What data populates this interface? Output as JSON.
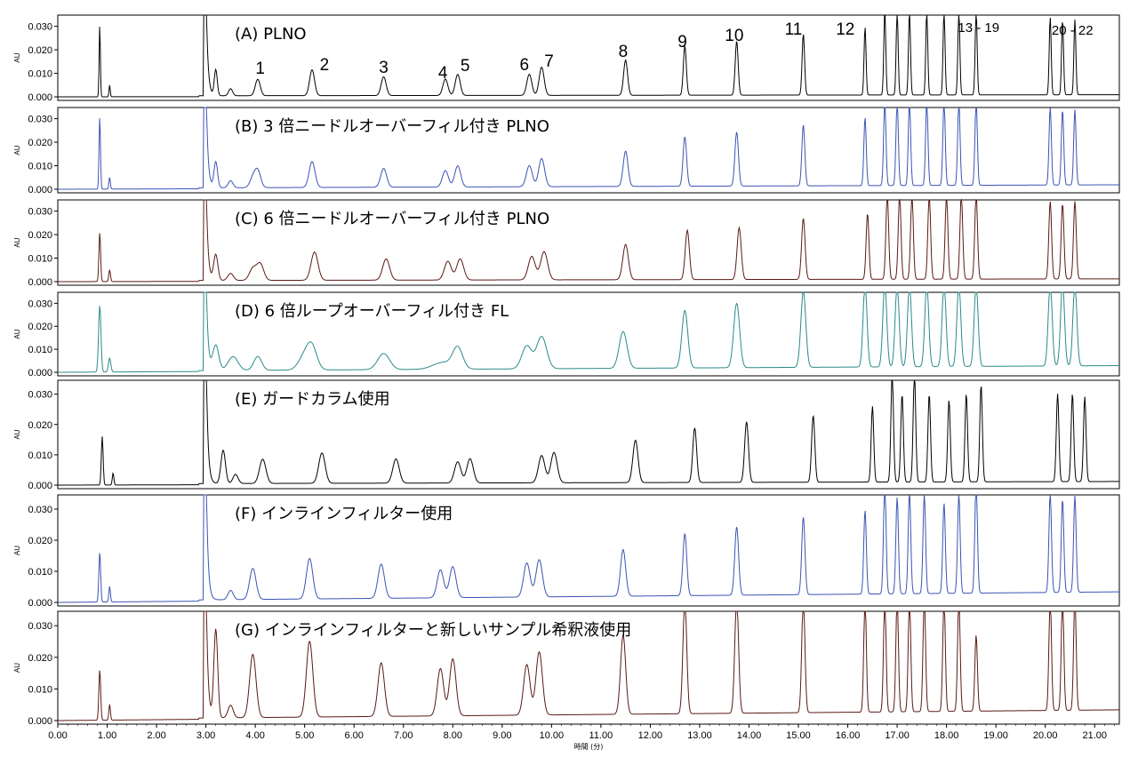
{
  "chart_data": {
    "type": "line",
    "x_axis": {
      "label": "時間 (分)",
      "range": [
        0.0,
        21.5
      ],
      "ticks": [
        "0.00",
        "1.00",
        "2.00",
        "3.00",
        "4.00",
        "5.00",
        "6.00",
        "7.00",
        "8.00",
        "9.00",
        "10.00",
        "11.00",
        "12.00",
        "13.00",
        "14.00",
        "15.00",
        "16.00",
        "17.00",
        "18.00",
        "19.00",
        "20.00",
        "21.00"
      ]
    },
    "y_axis": {
      "label": "AU",
      "range": [
        0.0,
        0.034
      ],
      "ticks": [
        "0.000",
        "0.010",
        "0.020",
        "0.030"
      ]
    },
    "grid": false,
    "panels": [
      {
        "title": "(A) PLNO",
        "color": "#000000",
        "shift": 0.0,
        "stretch": 1.0,
        "drift": 0.0005,
        "width_factor": 1.0,
        "peaks": [
          [
            0.85,
            0.031,
            0.012
          ],
          [
            1.05,
            0.005,
            0.012
          ],
          [
            3.2,
            0.011,
            0.03
          ],
          [
            3.5,
            0.003,
            0.04
          ],
          [
            4.05,
            0.007,
            0.05
          ],
          [
            5.15,
            0.011,
            0.05
          ],
          [
            6.6,
            0.008,
            0.05
          ],
          [
            7.85,
            0.007,
            0.05
          ],
          [
            8.1,
            0.009,
            0.05
          ],
          [
            9.55,
            0.009,
            0.05
          ],
          [
            9.8,
            0.012,
            0.05
          ],
          [
            11.5,
            0.015,
            0.04
          ],
          [
            12.7,
            0.021,
            0.03
          ],
          [
            13.75,
            0.023,
            0.03
          ],
          [
            15.1,
            0.026,
            0.025
          ],
          [
            16.35,
            0.029,
            0.02
          ],
          [
            16.75,
            0.036,
            0.02
          ],
          [
            17.0,
            0.036,
            0.02
          ],
          [
            17.25,
            0.036,
            0.02
          ],
          [
            17.6,
            0.036,
            0.02
          ],
          [
            17.95,
            0.036,
            0.02
          ],
          [
            18.25,
            0.036,
            0.02
          ],
          [
            18.6,
            0.036,
            0.02
          ],
          [
            20.1,
            0.033,
            0.02
          ],
          [
            20.35,
            0.032,
            0.02
          ],
          [
            20.6,
            0.032,
            0.02
          ]
        ],
        "peak_labels": [
          "1",
          "2",
          "3",
          "4",
          "5",
          "6",
          "7",
          "8",
          "9",
          "10",
          "11",
          "12",
          "13 - 19",
          "20 - 22"
        ]
      },
      {
        "title": "(B) 3 倍ニードルオーバーフィル付き PLNO",
        "color": "#3a54b4",
        "shift": 0.0,
        "stretch": 1.0,
        "drift": 0.0015,
        "width_factor": 1.2,
        "peaks": [
          [
            0.85,
            0.031,
            0.012
          ],
          [
            1.05,
            0.005,
            0.012
          ],
          [
            3.2,
            0.011,
            0.03
          ],
          [
            3.5,
            0.003,
            0.04
          ],
          [
            3.95,
            0.004,
            0.05
          ],
          [
            4.05,
            0.007,
            0.05
          ],
          [
            5.15,
            0.011,
            0.05
          ],
          [
            6.6,
            0.008,
            0.05
          ],
          [
            7.85,
            0.007,
            0.05
          ],
          [
            8.1,
            0.009,
            0.05
          ],
          [
            9.55,
            0.009,
            0.05
          ],
          [
            9.8,
            0.012,
            0.05
          ],
          [
            11.5,
            0.015,
            0.04
          ],
          [
            12.7,
            0.021,
            0.03
          ],
          [
            13.75,
            0.023,
            0.03
          ],
          [
            15.1,
            0.026,
            0.025
          ],
          [
            16.35,
            0.029,
            0.02
          ],
          [
            16.75,
            0.036,
            0.02
          ],
          [
            17.0,
            0.036,
            0.02
          ],
          [
            17.25,
            0.036,
            0.02
          ],
          [
            17.6,
            0.036,
            0.02
          ],
          [
            17.95,
            0.036,
            0.02
          ],
          [
            18.25,
            0.036,
            0.02
          ],
          [
            18.6,
            0.036,
            0.02
          ],
          [
            20.1,
            0.033,
            0.02
          ],
          [
            20.35,
            0.032,
            0.02
          ],
          [
            20.6,
            0.032,
            0.02
          ]
        ]
      },
      {
        "title": "(C) 6 倍ニードルオーバーフィル付き PLNO",
        "color": "#5a1a14",
        "shift": 0.0,
        "stretch": 1.0,
        "drift": 0.0008,
        "width_factor": 1.4,
        "peaks": [
          [
            0.85,
            0.021,
            0.012
          ],
          [
            1.05,
            0.005,
            0.012
          ],
          [
            3.2,
            0.011,
            0.03
          ],
          [
            3.5,
            0.003,
            0.04
          ],
          [
            3.95,
            0.005,
            0.05
          ],
          [
            4.1,
            0.007,
            0.05
          ],
          [
            5.2,
            0.012,
            0.05
          ],
          [
            6.65,
            0.009,
            0.05
          ],
          [
            7.9,
            0.008,
            0.05
          ],
          [
            8.15,
            0.009,
            0.05
          ],
          [
            9.6,
            0.01,
            0.05
          ],
          [
            9.85,
            0.012,
            0.05
          ],
          [
            11.5,
            0.015,
            0.04
          ],
          [
            12.75,
            0.021,
            0.03
          ],
          [
            13.8,
            0.022,
            0.03
          ],
          [
            15.1,
            0.026,
            0.025
          ],
          [
            16.4,
            0.028,
            0.02
          ],
          [
            16.8,
            0.036,
            0.02
          ],
          [
            17.05,
            0.036,
            0.02
          ],
          [
            17.3,
            0.036,
            0.02
          ],
          [
            17.65,
            0.036,
            0.02
          ],
          [
            18.0,
            0.036,
            0.02
          ],
          [
            18.3,
            0.036,
            0.02
          ],
          [
            18.6,
            0.036,
            0.02
          ],
          [
            20.1,
            0.033,
            0.02
          ],
          [
            20.35,
            0.032,
            0.02
          ],
          [
            20.6,
            0.033,
            0.02
          ]
        ]
      },
      {
        "title": "(D) 6 倍ループオーバーフィル付き FL",
        "color": "#2a8a8a",
        "shift": 0.0,
        "stretch": 1.0,
        "drift": 0.0025,
        "width_factor": 2.0,
        "peaks": [
          [
            0.85,
            0.029,
            0.012
          ],
          [
            1.05,
            0.006,
            0.012
          ],
          [
            3.2,
            0.011,
            0.03
          ],
          [
            3.55,
            0.006,
            0.05
          ],
          [
            4.05,
            0.006,
            0.04
          ],
          [
            5.0,
            0.006,
            0.06
          ],
          [
            5.15,
            0.009,
            0.05
          ],
          [
            6.6,
            0.007,
            0.06
          ],
          [
            7.8,
            0.003,
            0.1
          ],
          [
            8.1,
            0.009,
            0.05
          ],
          [
            9.5,
            0.01,
            0.05
          ],
          [
            9.8,
            0.014,
            0.05
          ],
          [
            11.45,
            0.016,
            0.04
          ],
          [
            12.7,
            0.025,
            0.03
          ],
          [
            13.75,
            0.028,
            0.03
          ],
          [
            15.1,
            0.033,
            0.025
          ],
          [
            16.35,
            0.036,
            0.02
          ],
          [
            16.75,
            0.036,
            0.02
          ],
          [
            17.0,
            0.036,
            0.02
          ],
          [
            17.25,
            0.036,
            0.02
          ],
          [
            17.6,
            0.036,
            0.02
          ],
          [
            17.95,
            0.036,
            0.02
          ],
          [
            18.25,
            0.036,
            0.02
          ],
          [
            18.6,
            0.036,
            0.02
          ],
          [
            20.1,
            0.036,
            0.02
          ],
          [
            20.35,
            0.036,
            0.02
          ],
          [
            20.6,
            0.036,
            0.02
          ]
        ]
      },
      {
        "title": "(E) ガードカラム使用",
        "color": "#000000",
        "shift": 0.0,
        "stretch": 1.0,
        "drift": 0.0008,
        "width_factor": 1.3,
        "peaks": [
          [
            0.9,
            0.016,
            0.014
          ],
          [
            1.12,
            0.004,
            0.012
          ],
          [
            3.35,
            0.011,
            0.035
          ],
          [
            3.6,
            0.003,
            0.04
          ],
          [
            4.15,
            0.008,
            0.05
          ],
          [
            5.35,
            0.01,
            0.05
          ],
          [
            6.85,
            0.008,
            0.05
          ],
          [
            8.1,
            0.007,
            0.05
          ],
          [
            8.35,
            0.008,
            0.05
          ],
          [
            9.8,
            0.009,
            0.05
          ],
          [
            10.05,
            0.01,
            0.05
          ],
          [
            11.7,
            0.014,
            0.04
          ],
          [
            12.9,
            0.018,
            0.03
          ],
          [
            13.95,
            0.02,
            0.03
          ],
          [
            15.3,
            0.022,
            0.025
          ],
          [
            16.5,
            0.025,
            0.02
          ],
          [
            16.9,
            0.036,
            0.02
          ],
          [
            17.1,
            0.029,
            0.02
          ],
          [
            17.35,
            0.036,
            0.02
          ],
          [
            17.65,
            0.029,
            0.02
          ],
          [
            18.05,
            0.027,
            0.02
          ],
          [
            18.4,
            0.029,
            0.02
          ],
          [
            18.7,
            0.032,
            0.02
          ],
          [
            20.25,
            0.029,
            0.02
          ],
          [
            20.55,
            0.029,
            0.02
          ],
          [
            20.8,
            0.028,
            0.02
          ]
        ]
      },
      {
        "title": "(F) インラインフィルター使用",
        "color": "#3a54b4",
        "shift": 0.0,
        "stretch": 1.0,
        "drift": 0.003,
        "width_factor": 1.3,
        "peaks": [
          [
            0.85,
            0.016,
            0.014
          ],
          [
            1.05,
            0.005,
            0.012
          ],
          [
            3.5,
            0.003,
            0.04
          ],
          [
            3.95,
            0.01,
            0.05
          ],
          [
            5.1,
            0.013,
            0.05
          ],
          [
            6.55,
            0.011,
            0.05
          ],
          [
            7.75,
            0.009,
            0.05
          ],
          [
            8.0,
            0.01,
            0.05
          ],
          [
            9.5,
            0.011,
            0.05
          ],
          [
            9.75,
            0.012,
            0.05
          ],
          [
            11.45,
            0.015,
            0.04
          ],
          [
            12.7,
            0.02,
            0.03
          ],
          [
            13.75,
            0.022,
            0.03
          ],
          [
            15.1,
            0.025,
            0.025
          ],
          [
            16.35,
            0.027,
            0.02
          ],
          [
            16.75,
            0.036,
            0.02
          ],
          [
            17.0,
            0.031,
            0.02
          ],
          [
            17.25,
            0.033,
            0.02
          ],
          [
            17.55,
            0.032,
            0.02
          ],
          [
            17.95,
            0.029,
            0.02
          ],
          [
            18.25,
            0.032,
            0.02
          ],
          [
            18.6,
            0.036,
            0.02
          ],
          [
            20.1,
            0.032,
            0.02
          ],
          [
            20.35,
            0.03,
            0.02
          ],
          [
            20.6,
            0.031,
            0.02
          ]
        ]
      },
      {
        "title": "(G) インラインフィルターと新しいサンプル希釈液使用",
        "color": "#5a1a14",
        "shift": 0.0,
        "stretch": 1.0,
        "drift": 0.003,
        "width_factor": 1.3,
        "peaks": [
          [
            0.85,
            0.016,
            0.014
          ],
          [
            1.05,
            0.005,
            0.012
          ],
          [
            3.2,
            0.028,
            0.03
          ],
          [
            3.5,
            0.004,
            0.04
          ],
          [
            3.95,
            0.02,
            0.05
          ],
          [
            5.1,
            0.024,
            0.05
          ],
          [
            6.55,
            0.017,
            0.05
          ],
          [
            7.75,
            0.015,
            0.05
          ],
          [
            8.0,
            0.018,
            0.05
          ],
          [
            9.5,
            0.016,
            0.05
          ],
          [
            9.75,
            0.02,
            0.05
          ],
          [
            11.45,
            0.025,
            0.04
          ],
          [
            12.7,
            0.036,
            0.03
          ],
          [
            13.75,
            0.036,
            0.03
          ],
          [
            15.1,
            0.036,
            0.025
          ],
          [
            16.35,
            0.036,
            0.02
          ],
          [
            16.75,
            0.036,
            0.02
          ],
          [
            17.0,
            0.036,
            0.02
          ],
          [
            17.25,
            0.036,
            0.02
          ],
          [
            17.55,
            0.036,
            0.02
          ],
          [
            17.95,
            0.036,
            0.02
          ],
          [
            18.25,
            0.036,
            0.02
          ],
          [
            18.6,
            0.024,
            0.02
          ],
          [
            20.1,
            0.036,
            0.02
          ],
          [
            20.35,
            0.036,
            0.02
          ],
          [
            20.6,
            0.036,
            0.02
          ]
        ]
      }
    ]
  }
}
